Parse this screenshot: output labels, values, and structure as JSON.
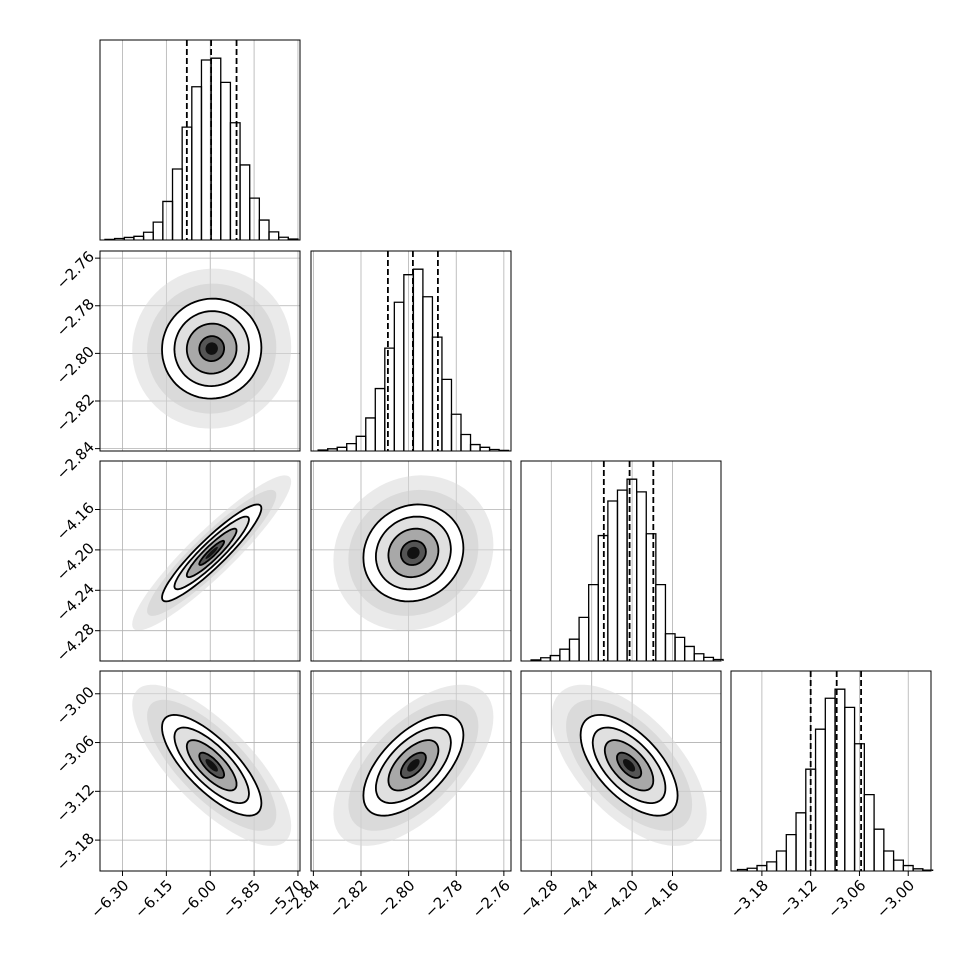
{
  "chart_data": {
    "type": "corner",
    "grid": true,
    "color": "#000000",
    "variables": [
      {
        "xlim": [
          -6.377,
          -5.693
        ],
        "ticks": [
          {
            "value": -6.3,
            "label": "−6.30"
          },
          {
            "value": -6.15,
            "label": "−6.15"
          },
          {
            "value": -6.0,
            "label": "−6.00"
          },
          {
            "value": -5.85,
            "label": "−5.85"
          },
          {
            "value": -5.7,
            "label": "−5.70"
          }
        ],
        "quantiles": [
          -6.08,
          -5.997,
          -5.91
        ],
        "mean": -5.995,
        "std": 0.085,
        "bins": [
          -6.36,
          -6.327,
          -6.294,
          -6.261,
          -6.228,
          -6.195,
          -6.162,
          -6.129,
          -6.096,
          -6.063,
          -6.03,
          -5.997,
          -5.964,
          -5.931,
          -5.898,
          -5.865,
          -5.832,
          -5.799,
          -5.766,
          -5.733,
          -5.7
        ],
        "counts": [
          3,
          8,
          14,
          20,
          42,
          97,
          209,
          385,
          612,
          831,
          976,
          986,
          855,
          636,
          407,
          227,
          108,
          44,
          15,
          5
        ]
      },
      {
        "xlim": [
          -2.841,
          -2.757
        ],
        "ticks": [
          {
            "value": -2.84,
            "label": "−2.84"
          },
          {
            "value": -2.82,
            "label": "−2.82"
          },
          {
            "value": -2.8,
            "label": "−2.80"
          },
          {
            "value": -2.78,
            "label": "−2.78"
          },
          {
            "value": -2.76,
            "label": "−2.76"
          }
        ],
        "quantiles": [
          -2.8087,
          -2.7982,
          -2.7877
        ],
        "mean": -2.798,
        "std": 0.0105,
        "bins": [
          -2.838,
          -2.834,
          -2.83,
          -2.826,
          -2.822,
          -2.818,
          -2.814,
          -2.81,
          -2.806,
          -2.802,
          -2.798,
          -2.794,
          -2.79,
          -2.786,
          -2.782,
          -2.778,
          -2.774,
          -2.77,
          -2.766,
          -2.762,
          -2.758
        ],
        "counts": [
          5,
          12,
          20,
          40,
          80,
          180,
          340,
          560,
          810,
          960,
          990,
          840,
          620,
          390,
          200,
          90,
          35,
          20,
          8,
          3
        ]
      },
      {
        "xlim": [
          -4.31,
          -4.112
        ],
        "ticks": [
          {
            "value": -4.28,
            "label": "−4.28"
          },
          {
            "value": -4.24,
            "label": "−4.24"
          },
          {
            "value": -4.2,
            "label": "−4.20"
          },
          {
            "value": -4.16,
            "label": "−4.16"
          }
        ],
        "quantiles": [
          -4.228,
          -4.2025,
          -4.179
        ],
        "mean": -4.203,
        "std": 0.024,
        "bins": [
          -4.3,
          -4.2905,
          -4.281,
          -4.2715,
          -4.262,
          -4.2525,
          -4.243,
          -4.2335,
          -4.224,
          -4.2145,
          -4.205,
          -4.1955,
          -4.186,
          -4.1765,
          -4.167,
          -4.1575,
          -4.148,
          -4.1385,
          -4.129,
          -4.1195,
          -4.11
        ],
        "counts": [
          6,
          18,
          30,
          65,
          120,
          240,
          420,
          690,
          880,
          940,
          1000,
          930,
          700,
          420,
          150,
          130,
          80,
          40,
          20,
          8
        ]
      },
      {
        "xlim": [
          -3.218,
          -2.972
        ],
        "ticks": [
          {
            "value": -3.18,
            "label": "−3.18"
          },
          {
            "value": -3.12,
            "label": "−3.12"
          },
          {
            "value": -3.06,
            "label": "−3.06"
          },
          {
            "value": -3.0,
            "label": "−3.00"
          }
        ],
        "quantiles": [
          -3.12,
          -3.088,
          -3.058
        ],
        "mean": -3.088,
        "std": 0.031,
        "bins": [
          -3.21,
          -3.198,
          -3.186,
          -3.174,
          -3.162,
          -3.15,
          -3.138,
          -3.126,
          -3.114,
          -3.102,
          -3.09,
          -3.078,
          -3.066,
          -3.054,
          -3.042,
          -3.03,
          -3.018,
          -3.006,
          -2.994,
          -2.982,
          -2.97
        ],
        "counts": [
          8,
          15,
          30,
          50,
          110,
          200,
          320,
          560,
          780,
          950,
          1000,
          900,
          700,
          420,
          230,
          110,
          60,
          30,
          12,
          5
        ]
      }
    ],
    "pairs": [
      {
        "x": 0,
        "y": 1,
        "corr": 0.02
      },
      {
        "x": 0,
        "y": 2,
        "corr": 0.92
      },
      {
        "x": 1,
        "y": 2,
        "corr": 0.1
      },
      {
        "x": 0,
        "y": 3,
        "corr": -0.75
      },
      {
        "x": 1,
        "y": 3,
        "corr": 0.6
      },
      {
        "x": 2,
        "y": 3,
        "corr": -0.6
      }
    ]
  }
}
